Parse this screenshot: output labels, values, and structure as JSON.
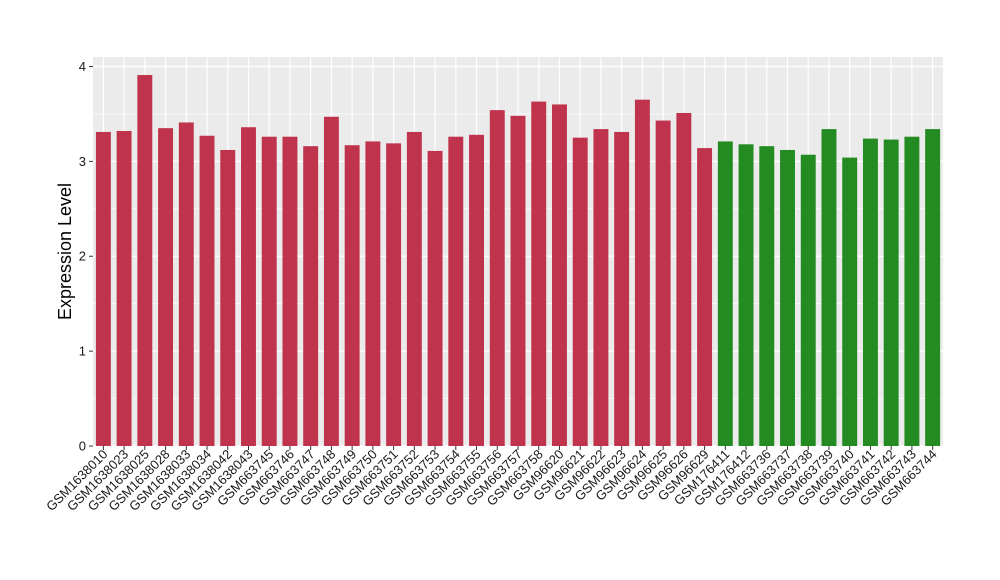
{
  "chart_data": {
    "type": "bar",
    "ylabel": "Expression Level",
    "xlabel": "",
    "ylim": [
      0,
      4.1
    ],
    "yticks": [
      0,
      1,
      2,
      3,
      4
    ],
    "grid": true,
    "background": "#ebebeb",
    "colors": {
      "group1": "#c0334c",
      "group2": "#238b22",
      "grid": "#ffffff"
    },
    "categories": [
      "GSM1638010",
      "GSM1638023",
      "GSM1638025",
      "GSM1638028",
      "GSM1638033",
      "GSM1638034",
      "GSM1638042",
      "GSM1638043",
      "GSM663745",
      "GSM663746",
      "GSM663747",
      "GSM663748",
      "GSM663749",
      "GSM663750",
      "GSM663751",
      "GSM663752",
      "GSM663753",
      "GSM663754",
      "GSM663755",
      "GSM663756",
      "GSM663757",
      "GSM663758",
      "GSM96620",
      "GSM96621",
      "GSM96622",
      "GSM96623",
      "GSM96624",
      "GSM96625",
      "GSM96626",
      "GSM96629",
      "GSM176411",
      "GSM176412",
      "GSM663736",
      "GSM663737",
      "GSM663738",
      "GSM663739",
      "GSM663740",
      "GSM663741",
      "GSM663742",
      "GSM663743",
      "GSM663744"
    ],
    "values": [
      3.31,
      3.32,
      3.91,
      3.35,
      3.41,
      3.27,
      3.12,
      3.36,
      3.26,
      3.26,
      3.16,
      3.47,
      3.17,
      3.21,
      3.19,
      3.31,
      3.11,
      3.26,
      3.28,
      3.54,
      3.48,
      3.63,
      3.6,
      3.25,
      3.34,
      3.31,
      3.65,
      3.43,
      3.51,
      3.14,
      3.21,
      3.18,
      3.16,
      3.12,
      3.07,
      3.34,
      3.04,
      3.24,
      3.23,
      3.26,
      3.34
    ],
    "groups": [
      1,
      1,
      1,
      1,
      1,
      1,
      1,
      1,
      1,
      1,
      1,
      1,
      1,
      1,
      1,
      1,
      1,
      1,
      1,
      1,
      1,
      1,
      1,
      1,
      1,
      1,
      1,
      1,
      1,
      1,
      2,
      2,
      2,
      2,
      2,
      2,
      2,
      2,
      2,
      2,
      2
    ]
  }
}
